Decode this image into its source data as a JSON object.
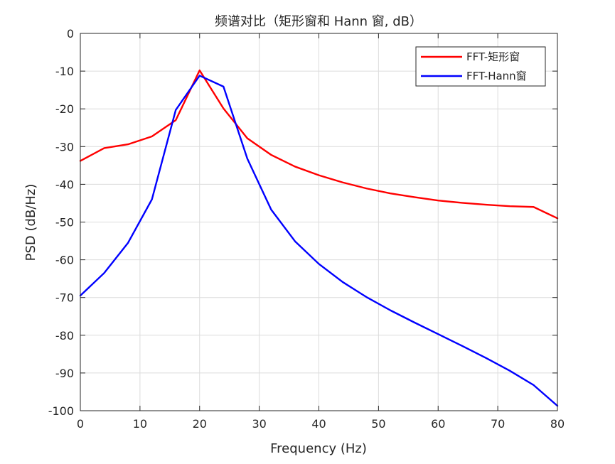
{
  "chart_data": {
    "type": "line",
    "title": "频谱对比（矩形窗和 Hann 窗, dB）",
    "xlabel": "Frequency (Hz)",
    "ylabel": "PSD (dB/Hz)",
    "xlim": [
      0,
      80
    ],
    "ylim": [
      -100,
      0
    ],
    "xticks": [
      0,
      10,
      20,
      30,
      40,
      50,
      60,
      70,
      80
    ],
    "yticks": [
      0,
      -10,
      -20,
      -30,
      -40,
      -50,
      -60,
      -70,
      -80,
      -90,
      -100
    ],
    "grid": true,
    "legend_position": "top-right",
    "series": [
      {
        "name": "FFT-矩形窗",
        "color": "#ff0000",
        "x": [
          0,
          4,
          8,
          12,
          16,
          20,
          24,
          28,
          32,
          36,
          40,
          44,
          48,
          52,
          56,
          60,
          64,
          68,
          72,
          76,
          80
        ],
        "y": [
          -33.8,
          -30.4,
          -29.4,
          -27.3,
          -23.0,
          -9.8,
          -19.9,
          -27.8,
          -32.2,
          -35.3,
          -37.6,
          -39.5,
          -41.1,
          -42.4,
          -43.4,
          -44.3,
          -44.9,
          -45.4,
          -45.8,
          -46.0,
          -49.0
        ]
      },
      {
        "name": "FFT-Hann窗",
        "color": "#0000ff",
        "x": [
          0,
          4,
          8,
          12,
          16,
          20,
          24,
          28,
          32,
          36,
          40,
          44,
          48,
          52,
          56,
          60,
          64,
          68,
          72,
          76,
          80
        ],
        "y": [
          -69.5,
          -63.5,
          -55.5,
          -44.0,
          -20.3,
          -11.2,
          -14.1,
          -33.2,
          -46.7,
          -55.1,
          -61.1,
          -65.9,
          -69.9,
          -73.4,
          -76.6,
          -79.7,
          -82.8,
          -86.0,
          -89.4,
          -93.2,
          -98.7
        ]
      }
    ]
  }
}
